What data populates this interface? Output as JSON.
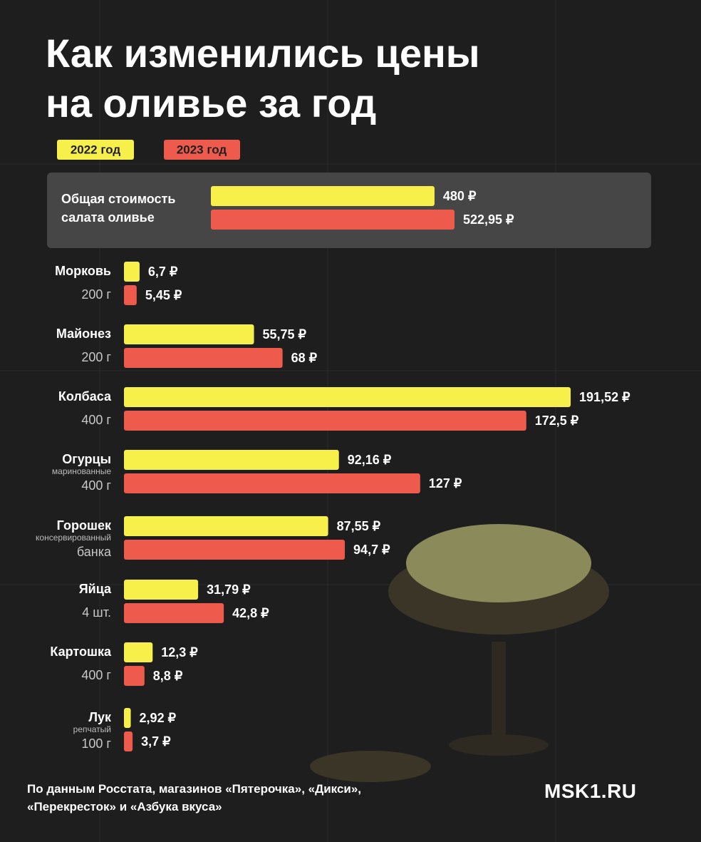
{
  "chart_data": [
    {
      "type": "bar",
      "title": "Как изменились цены на оливье за год",
      "categories": [
        "Общая стоимость салата оливье"
      ],
      "series": [
        {
          "color": "#f8f04a",
          "values": [
            480
          ],
          "value_labels": [
            "480 ₽"
          ]
        },
        {
          "color": "#ee5a4c",
          "values": [
            522.95
          ],
          "value_labels": [
            "522,95 ₽"
          ]
        }
      ]
    },
    {
      "type": "bar",
      "categories": [
        "Морковь",
        "Майонез",
        "Колбаса",
        "Огурцы",
        "Горошек",
        "Яйца",
        "Картошка",
        "Лук"
      ],
      "category_details": [
        null,
        null,
        null,
        "маринованные",
        "консервированный",
        null,
        null,
        "репчатый"
      ],
      "quantities": [
        "200 г",
        "200 г",
        "400 г",
        "400 г",
        "банка",
        "4 шт.",
        "400 г",
        "100 г"
      ],
      "series": [
        {
          "name": "2022 год",
          "color": "#f8f04a",
          "values": [
            6.7,
            55.75,
            191.52,
            92.16,
            87.55,
            31.79,
            12.3,
            2.92
          ],
          "value_labels": [
            "6,7 ₽",
            "55,75 ₽",
            "191,52 ₽",
            "92,16 ₽",
            "87,55 ₽",
            "31,79 ₽",
            "12,3 ₽",
            "2,92 ₽"
          ]
        },
        {
          "name": "2023 год",
          "color": "#ee5a4c",
          "values": [
            5.45,
            68,
            172.5,
            127,
            94.7,
            42.8,
            8.8,
            3.7
          ],
          "value_labels": [
            "5,45 ₽",
            "68 ₽",
            "172,5 ₽",
            "127 ₽",
            "94,7 ₽",
            "42,8 ₽",
            "8,8 ₽",
            "3,7 ₽"
          ]
        }
      ]
    }
  ],
  "footer": {
    "note": "По данным Росстата, магазинов «Пятерочка», «Дикси», «Перекресток» и «Азбука вкуса»",
    "logo": "MSK1.RU"
  }
}
